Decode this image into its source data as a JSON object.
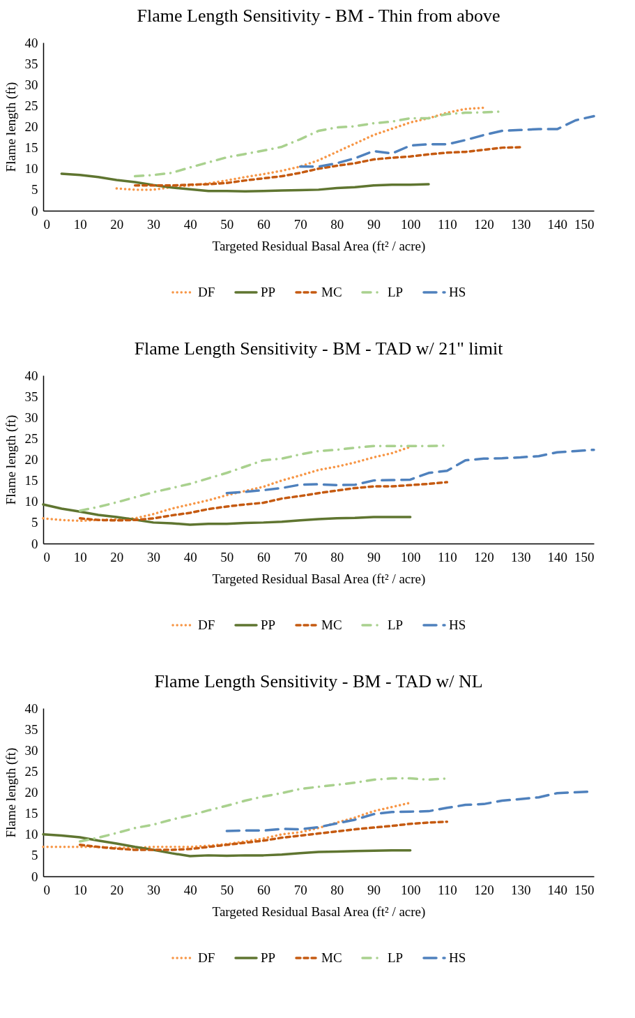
{
  "chart_data": [
    {
      "type": "line",
      "title": "Flame Length Sensitivity - BM - Thin from above",
      "xlabel": "Targeted Residual Basal Area (ft² / acre)",
      "ylabel": "Flame length (ft)",
      "x": [
        5,
        10,
        15,
        20,
        25,
        30,
        35,
        40,
        45,
        50,
        55,
        60,
        65,
        70,
        75,
        80,
        85,
        90,
        95,
        100,
        105,
        110,
        115,
        120,
        125,
        130,
        135,
        140,
        145,
        150
      ],
      "xlim": [
        0,
        150
      ],
      "xticks": [
        0,
        10,
        20,
        30,
        40,
        50,
        60,
        70,
        80,
        90,
        100,
        110,
        120,
        130,
        140,
        150
      ],
      "ylim": [
        0,
        40
      ],
      "yticks": [
        0,
        5,
        10,
        15,
        20,
        25,
        30,
        35,
        40
      ],
      "legend": "bottom",
      "series": [
        {
          "name": "DF",
          "color": "#f79646",
          "line_style": "dotted",
          "values": [
            null,
            null,
            null,
            5.3,
            5.0,
            5.0,
            5.6,
            6.0,
            6.5,
            7.2,
            8.0,
            8.7,
            9.5,
            10.5,
            12.0,
            14.0,
            16.0,
            18.0,
            19.5,
            21.0,
            22.0,
            23.3,
            24.2,
            24.5,
            null,
            null,
            null,
            null,
            null,
            null
          ]
        },
        {
          "name": "PP",
          "color": "#5f7530",
          "line_style": "solid",
          "values": [
            8.8,
            8.5,
            8.0,
            7.3,
            6.8,
            6.1,
            5.5,
            5.1,
            4.7,
            4.7,
            4.6,
            4.7,
            4.8,
            4.9,
            5.0,
            5.4,
            5.6,
            6.0,
            6.2,
            6.2,
            6.3,
            null,
            null,
            null,
            null,
            null,
            null,
            null,
            null,
            null
          ]
        },
        {
          "name": "MC",
          "color": "#c55a11",
          "line_style": "dashed",
          "values": [
            null,
            null,
            null,
            null,
            6.0,
            6.0,
            6.0,
            6.2,
            6.3,
            6.6,
            7.2,
            7.7,
            8.2,
            9.0,
            10.0,
            10.7,
            11.3,
            12.2,
            12.6,
            12.9,
            13.4,
            13.8,
            14.0,
            14.5,
            15.0,
            15.1,
            null,
            null,
            null,
            null
          ]
        },
        {
          "name": "LP",
          "color": "#a9d18e",
          "line_style": "dashdot",
          "values": [
            null,
            null,
            null,
            null,
            8.2,
            8.5,
            9.0,
            10.3,
            11.5,
            12.7,
            13.5,
            14.3,
            15.2,
            17.0,
            19.0,
            19.8,
            20.1,
            20.8,
            21.2,
            22.0,
            22.0,
            23.0,
            23.3,
            23.4,
            23.6,
            null,
            null,
            null,
            null,
            null
          ]
        },
        {
          "name": "HS",
          "color": "#4f81bd",
          "line_style": "longdash",
          "values": [
            null,
            null,
            null,
            null,
            null,
            null,
            null,
            null,
            null,
            null,
            null,
            null,
            null,
            10.5,
            10.5,
            11.3,
            12.5,
            14.2,
            13.6,
            15.5,
            15.8,
            15.8,
            16.8,
            18.0,
            19.0,
            19.2,
            19.4,
            19.4,
            21.5,
            22.5
          ]
        }
      ]
    },
    {
      "type": "line",
      "title": "Flame Length Sensitivity - BM - TAD w/ 21\" limit",
      "xlabel": "Targeted Residual Basal Area (ft² / acre)",
      "ylabel": "Flame length (ft)",
      "x": [
        0,
        5,
        10,
        15,
        20,
        25,
        30,
        35,
        40,
        45,
        50,
        55,
        60,
        65,
        70,
        75,
        80,
        85,
        90,
        95,
        100,
        105,
        110,
        115,
        120,
        125,
        130,
        135,
        140,
        145,
        150
      ],
      "xlim": [
        0,
        150
      ],
      "xticks": [
        0,
        10,
        20,
        30,
        40,
        50,
        60,
        70,
        80,
        90,
        100,
        110,
        120,
        130,
        140,
        150
      ],
      "ylim": [
        0,
        40
      ],
      "yticks": [
        0,
        5,
        10,
        15,
        20,
        25,
        30,
        35,
        40
      ],
      "legend": "bottom",
      "series": [
        {
          "name": "DF",
          "color": "#f79646",
          "line_style": "dotted",
          "values": [
            6.0,
            5.6,
            5.4,
            5.6,
            5.8,
            6.0,
            7.0,
            8.3,
            9.3,
            10.3,
            11.5,
            12.5,
            13.5,
            15.0,
            16.2,
            17.5,
            18.3,
            19.3,
            20.5,
            21.5,
            23.0,
            null,
            null,
            null,
            null,
            null,
            null,
            null,
            null,
            null,
            null
          ]
        },
        {
          "name": "PP",
          "color": "#5f7530",
          "line_style": "solid",
          "values": [
            9.3,
            8.3,
            7.6,
            6.8,
            6.3,
            5.7,
            5.0,
            4.8,
            4.5,
            4.7,
            4.7,
            4.9,
            5.0,
            5.2,
            5.5,
            5.8,
            6.0,
            6.1,
            6.3,
            6.3,
            6.3,
            null,
            null,
            null,
            null,
            null,
            null,
            null,
            null,
            null,
            null
          ]
        },
        {
          "name": "MC",
          "color": "#c55a11",
          "line_style": "dashed",
          "values": [
            null,
            null,
            6.0,
            5.6,
            5.5,
            5.6,
            6.0,
            6.7,
            7.3,
            8.2,
            8.8,
            9.3,
            9.7,
            10.7,
            11.3,
            12.0,
            12.6,
            13.2,
            13.6,
            13.6,
            13.9,
            14.2,
            14.6,
            null,
            null,
            null,
            null,
            null,
            null,
            null,
            null
          ]
        },
        {
          "name": "LP",
          "color": "#a9d18e",
          "line_style": "dashdot",
          "values": [
            null,
            null,
            7.8,
            8.7,
            9.8,
            11.0,
            12.2,
            13.2,
            14.2,
            15.5,
            16.8,
            18.3,
            19.8,
            20.2,
            21.2,
            22.0,
            22.3,
            22.8,
            23.2,
            23.2,
            23.2,
            23.2,
            23.3,
            null,
            null,
            null,
            null,
            null,
            null,
            null,
            null
          ]
        },
        {
          "name": "HS",
          "color": "#4f81bd",
          "line_style": "longdash",
          "values": [
            null,
            null,
            null,
            null,
            null,
            null,
            null,
            null,
            null,
            null,
            12.0,
            12.3,
            12.7,
            13.2,
            14.0,
            14.1,
            13.9,
            14.0,
            15.0,
            15.1,
            15.2,
            16.8,
            17.3,
            19.8,
            20.2,
            20.3,
            20.5,
            20.8,
            21.7,
            22.0,
            22.3
          ]
        }
      ]
    },
    {
      "type": "line",
      "title": "Flame Length Sensitivity - BM - TAD w/ NL",
      "xlabel": "Targeted Residual Basal Area (ft² / acre)",
      "ylabel": "Flame length (ft)",
      "x": [
        0,
        5,
        10,
        15,
        20,
        25,
        30,
        35,
        40,
        45,
        50,
        55,
        60,
        65,
        70,
        75,
        80,
        85,
        90,
        95,
        100,
        105,
        110,
        115,
        120,
        125,
        130,
        135,
        140,
        145,
        150
      ],
      "xlim": [
        0,
        150
      ],
      "xticks": [
        0,
        10,
        20,
        30,
        40,
        50,
        60,
        70,
        80,
        90,
        100,
        110,
        120,
        130,
        140,
        150
      ],
      "ylim": [
        0,
        40
      ],
      "yticks": [
        0,
        5,
        10,
        15,
        20,
        25,
        30,
        35,
        40
      ],
      "legend": "bottom",
      "series": [
        {
          "name": "DF",
          "color": "#f79646",
          "line_style": "dotted",
          "values": [
            7.0,
            7.0,
            7.0,
            7.0,
            6.8,
            6.8,
            7.0,
            7.0,
            7.0,
            7.3,
            7.7,
            8.3,
            9.0,
            10.0,
            10.5,
            11.5,
            12.8,
            14.0,
            15.5,
            16.5,
            17.5,
            null,
            null,
            null,
            null,
            null,
            null,
            null,
            null,
            null,
            null
          ]
        },
        {
          "name": "PP",
          "color": "#5f7530",
          "line_style": "solid",
          "values": [
            10.0,
            9.7,
            9.3,
            8.5,
            7.8,
            7.0,
            6.3,
            5.5,
            4.8,
            5.0,
            4.9,
            5.0,
            5.0,
            5.2,
            5.5,
            5.8,
            5.9,
            6.0,
            6.1,
            6.2,
            6.2,
            null,
            null,
            null,
            null,
            null,
            null,
            null,
            null,
            null,
            null
          ]
        },
        {
          "name": "MC",
          "color": "#c55a11",
          "line_style": "dashed",
          "values": [
            null,
            null,
            7.5,
            7.0,
            6.6,
            6.3,
            6.3,
            6.3,
            6.5,
            7.0,
            7.5,
            8.0,
            8.5,
            9.2,
            9.7,
            10.2,
            10.7,
            11.2,
            11.6,
            12.0,
            12.5,
            12.8,
            13.0,
            null,
            null,
            null,
            null,
            null,
            null,
            null,
            null
          ]
        },
        {
          "name": "LP",
          "color": "#a9d18e",
          "line_style": "dashdot",
          "values": [
            null,
            null,
            8.3,
            9.2,
            10.3,
            11.5,
            12.3,
            13.5,
            14.5,
            15.7,
            16.8,
            18.0,
            19.0,
            19.8,
            20.8,
            21.3,
            21.8,
            22.3,
            23.0,
            23.3,
            23.3,
            23.0,
            23.3,
            null,
            null,
            null,
            null,
            null,
            null,
            null,
            null
          ]
        },
        {
          "name": "HS",
          "color": "#4f81bd",
          "line_style": "longdash",
          "values": [
            null,
            null,
            null,
            null,
            null,
            null,
            null,
            null,
            null,
            null,
            10.8,
            10.9,
            10.9,
            11.3,
            11.2,
            11.7,
            12.6,
            13.5,
            14.8,
            15.3,
            15.4,
            15.5,
            16.3,
            17.0,
            17.2,
            18.0,
            18.4,
            18.8,
            19.8,
            20.0,
            20.2
          ]
        }
      ]
    }
  ]
}
